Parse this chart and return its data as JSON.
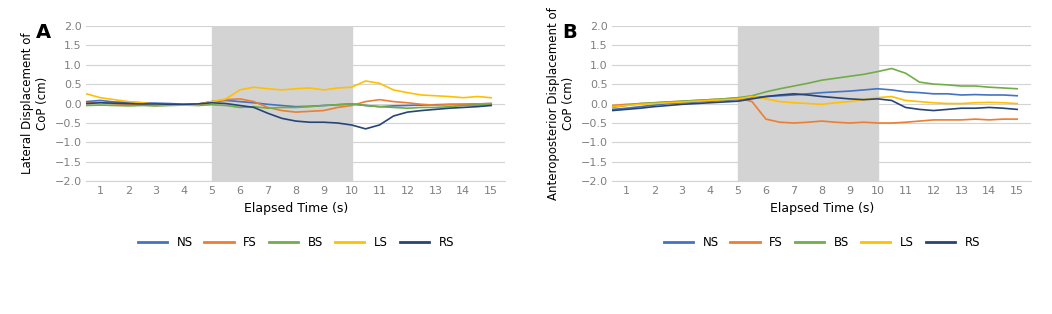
{
  "panel_A_label": "A",
  "panel_B_label": "B",
  "ylabel_A": "Lateral Displacement of\nCoP (cm)",
  "ylabel_B": "Anteroposterior Displacement of\nCoP (cm)",
  "xlabel": "Elapsed Time (s)",
  "xlim": [
    0.5,
    15.5
  ],
  "ylim": [
    -2,
    2
  ],
  "yticks": [
    -2,
    -1.5,
    -1,
    -0.5,
    0,
    0.5,
    1,
    1.5,
    2
  ],
  "xticks": [
    1,
    2,
    3,
    4,
    5,
    6,
    7,
    8,
    9,
    10,
    11,
    12,
    13,
    14,
    15
  ],
  "shade_start": 5,
  "shade_end": 10,
  "shade_color": "#d3d3d3",
  "colors": {
    "NS": "#4472C4",
    "FS": "#ED7D31",
    "BS": "#70AD47",
    "LS": "#FFC000",
    "RS": "#264478"
  },
  "legend_labels": [
    "NS",
    "FS",
    "BS",
    "LS",
    "RS"
  ],
  "t": [
    0.5,
    1,
    1.5,
    2,
    2.5,
    3,
    3.5,
    4,
    4.5,
    5,
    5.5,
    6,
    6.5,
    7,
    7.5,
    8,
    8.5,
    9,
    9.5,
    10,
    10.5,
    11,
    11.5,
    12,
    12.5,
    13,
    13.5,
    14,
    14.5,
    15
  ],
  "A_NS": [
    0.05,
    0.08,
    0.04,
    0.03,
    0.02,
    0.01,
    0.0,
    -0.02,
    -0.01,
    0.05,
    0.08,
    0.05,
    0.02,
    -0.02,
    -0.05,
    -0.08,
    -0.07,
    -0.05,
    -0.03,
    -0.01,
    -0.05,
    -0.08,
    -0.06,
    -0.05,
    -0.04,
    -0.03,
    -0.02,
    -0.02,
    -0.01,
    0.0
  ],
  "A_FS": [
    0.02,
    0.03,
    -0.01,
    -0.02,
    -0.04,
    -0.05,
    -0.04,
    -0.03,
    -0.02,
    0.05,
    0.1,
    0.12,
    0.05,
    -0.1,
    -0.18,
    -0.22,
    -0.2,
    -0.18,
    -0.1,
    -0.05,
    0.05,
    0.1,
    0.05,
    0.02,
    -0.02,
    -0.04,
    -0.03,
    -0.02,
    -0.01,
    0.0
  ],
  "A_BS": [
    -0.05,
    -0.04,
    -0.05,
    -0.06,
    -0.05,
    -0.06,
    -0.05,
    -0.04,
    -0.05,
    -0.03,
    -0.05,
    -0.1,
    -0.08,
    -0.12,
    -0.1,
    -0.1,
    -0.08,
    -0.05,
    -0.03,
    -0.01,
    -0.05,
    -0.08,
    -0.1,
    -0.12,
    -0.1,
    -0.1,
    -0.08,
    -0.05,
    -0.04,
    -0.03
  ],
  "A_LS": [
    0.25,
    0.15,
    0.1,
    0.05,
    0.02,
    -0.02,
    -0.03,
    -0.04,
    -0.03,
    0.05,
    0.12,
    0.35,
    0.42,
    0.38,
    0.35,
    0.38,
    0.4,
    0.35,
    0.4,
    0.42,
    0.58,
    0.52,
    0.35,
    0.28,
    0.22,
    0.2,
    0.18,
    0.15,
    0.18,
    0.15
  ],
  "A_RS": [
    0.0,
    0.02,
    0.01,
    0.0,
    -0.01,
    -0.01,
    -0.02,
    -0.02,
    -0.01,
    0.02,
    0.0,
    -0.05,
    -0.1,
    -0.25,
    -0.38,
    -0.45,
    -0.48,
    -0.48,
    -0.5,
    -0.55,
    -0.65,
    -0.55,
    -0.32,
    -0.22,
    -0.18,
    -0.15,
    -0.12,
    -0.1,
    -0.08,
    -0.05
  ],
  "B_NS": [
    -0.15,
    -0.12,
    -0.08,
    -0.04,
    0.0,
    0.02,
    0.04,
    0.06,
    0.08,
    0.1,
    0.15,
    0.18,
    0.2,
    0.22,
    0.25,
    0.28,
    0.3,
    0.32,
    0.35,
    0.38,
    0.35,
    0.3,
    0.28,
    0.25,
    0.25,
    0.22,
    0.23,
    0.22,
    0.22,
    0.2
  ],
  "B_FS": [
    -0.05,
    -0.02,
    0.0,
    0.02,
    0.04,
    0.06,
    0.08,
    0.1,
    0.12,
    0.15,
    0.05,
    -0.4,
    -0.48,
    -0.5,
    -0.48,
    -0.45,
    -0.48,
    -0.5,
    -0.48,
    -0.5,
    -0.5,
    -0.48,
    -0.45,
    -0.42,
    -0.42,
    -0.42,
    -0.4,
    -0.42,
    -0.4,
    -0.4
  ],
  "B_BS": [
    -0.1,
    -0.05,
    0.0,
    0.02,
    0.04,
    0.06,
    0.08,
    0.1,
    0.12,
    0.15,
    0.2,
    0.3,
    0.38,
    0.45,
    0.52,
    0.6,
    0.65,
    0.7,
    0.75,
    0.82,
    0.9,
    0.78,
    0.55,
    0.5,
    0.48,
    0.45,
    0.45,
    0.42,
    0.4,
    0.38
  ],
  "B_LS": [
    -0.08,
    -0.05,
    -0.02,
    0.0,
    0.02,
    0.04,
    0.06,
    0.08,
    0.1,
    0.12,
    0.18,
    0.12,
    0.05,
    0.02,
    0.0,
    -0.02,
    0.02,
    0.05,
    0.1,
    0.15,
    0.18,
    0.08,
    0.05,
    0.02,
    0.0,
    0.0,
    0.02,
    0.03,
    0.02,
    0.0
  ],
  "B_RS": [
    -0.18,
    -0.15,
    -0.12,
    -0.08,
    -0.05,
    -0.02,
    0.0,
    0.02,
    0.04,
    0.06,
    0.12,
    0.18,
    0.22,
    0.25,
    0.22,
    0.18,
    0.15,
    0.12,
    0.1,
    0.12,
    0.08,
    -0.1,
    -0.15,
    -0.18,
    -0.15,
    -0.12,
    -0.12,
    -0.1,
    -0.12,
    -0.15
  ]
}
